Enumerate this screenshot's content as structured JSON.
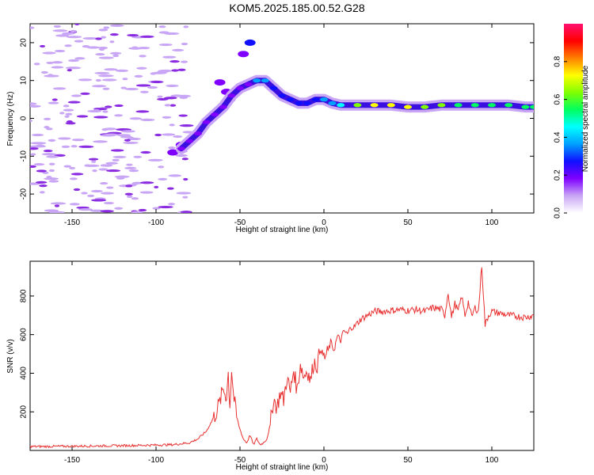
{
  "title": "KOM5.2025.185.00.52.G28",
  "colorbar": {
    "label": "Normalized spectral amplitude",
    "range": [
      0,
      1
    ],
    "ticks": [
      0.0,
      0.2,
      0.4,
      0.6,
      0.8
    ],
    "tick_labels": [
      "0.0",
      "0.2",
      "0.4",
      "0.6",
      "0.8"
    ],
    "colors": [
      "#ffffff",
      "#c9a6f5",
      "#7f00ff",
      "#1010ff",
      "#00a0ff",
      "#00ffff",
      "#00ff60",
      "#7fff00",
      "#ffff00",
      "#ff8000",
      "#ff0000",
      "#ff1070"
    ]
  },
  "chart_data": [
    {
      "type": "heatmap",
      "xlabel": "Height of straight line (km)",
      "ylabel": "Frequency (Hz)",
      "xlim": [
        -175,
        125
      ],
      "ylim": [
        -25,
        25
      ],
      "xticks": [
        -150,
        -100,
        -50,
        0,
        50,
        100
      ],
      "xtick_labels": [
        "-150",
        "-100",
        "-50",
        "0",
        "50",
        "100"
      ],
      "yticks": [
        -20,
        -10,
        0,
        10,
        20
      ],
      "ytick_labels": [
        "-20",
        "-10",
        "0",
        "10",
        "20"
      ],
      "ridge": [
        {
          "x": -85,
          "y": -8,
          "amp": 0.15
        },
        {
          "x": -80,
          "y": -6,
          "amp": 0.18
        },
        {
          "x": -75,
          "y": -4,
          "amp": 0.2
        },
        {
          "x": -70,
          "y": -1,
          "amp": 0.2
        },
        {
          "x": -65,
          "y": 1,
          "amp": 0.18
        },
        {
          "x": -60,
          "y": 3,
          "amp": 0.18
        },
        {
          "x": -55,
          "y": 6,
          "amp": 0.22
        },
        {
          "x": -50,
          "y": 8,
          "amp": 0.2
        },
        {
          "x": -45,
          "y": 9,
          "amp": 0.2
        },
        {
          "x": -40,
          "y": 10,
          "amp": 0.35
        },
        {
          "x": -35,
          "y": 10,
          "amp": 0.38
        },
        {
          "x": -30,
          "y": 8,
          "amp": 0.3
        },
        {
          "x": -25,
          "y": 6,
          "amp": 0.25
        },
        {
          "x": -20,
          "y": 5,
          "amp": 0.28
        },
        {
          "x": -15,
          "y": 4,
          "amp": 0.3
        },
        {
          "x": -10,
          "y": 4,
          "amp": 0.3
        },
        {
          "x": -5,
          "y": 5,
          "amp": 0.3
        },
        {
          "x": 0,
          "y": 5,
          "amp": 0.32
        },
        {
          "x": 5,
          "y": 4,
          "amp": 0.35
        },
        {
          "x": 10,
          "y": 3.5,
          "amp": 0.45
        },
        {
          "x": 20,
          "y": 3.5,
          "amp": 0.6
        },
        {
          "x": 30,
          "y": 3.5,
          "amp": 0.75
        },
        {
          "x": 40,
          "y": 3.5,
          "amp": 0.75
        },
        {
          "x": 50,
          "y": 3,
          "amp": 0.7
        },
        {
          "x": 60,
          "y": 3,
          "amp": 0.65
        },
        {
          "x": 70,
          "y": 3.5,
          "amp": 0.6
        },
        {
          "x": 80,
          "y": 3.5,
          "amp": 0.55
        },
        {
          "x": 90,
          "y": 3.5,
          "amp": 0.5
        },
        {
          "x": 100,
          "y": 3.5,
          "amp": 0.55
        },
        {
          "x": 110,
          "y": 3.5,
          "amp": 0.55
        },
        {
          "x": 120,
          "y": 3,
          "amp": 0.5
        },
        {
          "x": 125,
          "y": 3,
          "amp": 0.5
        }
      ],
      "blobs": [
        {
          "x": -62,
          "y": 9.5,
          "amp": 0.2
        },
        {
          "x": -58,
          "y": 7,
          "amp": 0.2
        },
        {
          "x": -56,
          "y": 5,
          "amp": 0.2
        },
        {
          "x": -44,
          "y": 20,
          "amp": 0.25
        },
        {
          "x": -48,
          "y": 17,
          "amp": 0.2
        },
        {
          "x": -37,
          "y": 10.5,
          "amp": 0.45
        },
        {
          "x": -85,
          "y": -7,
          "amp": 0.2
        },
        {
          "x": -90,
          "y": -9,
          "amp": 0.15
        }
      ]
    },
    {
      "type": "line",
      "xlabel": "Height of straight line (km)",
      "ylabel": "SNR (v/v)",
      "xlim": [
        -175,
        125
      ],
      "ylim": [
        0,
        980
      ],
      "xticks": [
        -150,
        -100,
        -50,
        0,
        50,
        100
      ],
      "xtick_labels": [
        "-150",
        "-100",
        "-50",
        "0",
        "50",
        "100"
      ],
      "yticks": [
        200,
        400,
        600,
        800
      ],
      "ytick_labels": [
        "200",
        "400",
        "600",
        "800"
      ],
      "series": [
        {
          "color": "#e83030",
          "x": [
            -175,
            -150,
            -120,
            -100,
            -90,
            -80,
            -75,
            -70,
            -65,
            -62,
            -60,
            -58,
            -57,
            -56,
            -55,
            -54,
            -52,
            -50,
            -48,
            -46,
            -44,
            -42,
            -40,
            -38,
            -36,
            -34,
            -32,
            -30,
            -28,
            -26,
            -24,
            -22,
            -20,
            -18,
            -16,
            -14,
            -12,
            -10,
            -8,
            -6,
            -4,
            -2,
            0,
            2,
            4,
            6,
            8,
            10,
            12,
            14,
            16,
            18,
            20,
            22,
            24,
            26,
            28,
            30,
            35,
            40,
            45,
            50,
            55,
            60,
            65,
            70,
            72,
            74,
            76,
            78,
            80,
            82,
            84,
            86,
            88,
            90,
            92,
            94,
            96,
            98,
            100,
            105,
            110,
            115,
            120,
            125
          ],
          "y": [
            20,
            22,
            25,
            28,
            30,
            40,
            60,
            100,
            180,
            250,
            320,
            280,
            400,
            230,
            420,
            300,
            170,
            110,
            60,
            40,
            80,
            30,
            60,
            30,
            40,
            60,
            130,
            270,
            220,
            300,
            260,
            380,
            300,
            420,
            310,
            450,
            380,
            420,
            360,
            460,
            440,
            530,
            480,
            500,
            560,
            520,
            590,
            570,
            620,
            600,
            640,
            640,
            660,
            680,
            690,
            700,
            710,
            720,
            720,
            725,
            730,
            725,
            730,
            720,
            740,
            730,
            700,
            820,
            690,
            760,
            720,
            800,
            700,
            770,
            690,
            740,
            720,
            960,
            650,
            700,
            720,
            710,
            700,
            695,
            690,
            700
          ]
        }
      ]
    }
  ]
}
